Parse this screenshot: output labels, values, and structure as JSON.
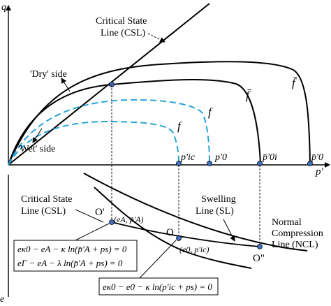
{
  "upper": {
    "q_axis_label": "q",
    "p_axis_label": "p'",
    "csl_label_line1": "Critical State",
    "csl_label_line2": "Line (CSL)",
    "dry_side_label": "'Dry' side",
    "wet_side_label": "'Wet' side",
    "curve_labels": {
      "f_bar_inner": "f̄",
      "f_bar_outer": "f̄",
      "f_upper": "f",
      "f_lower": "f"
    },
    "point_labels": {
      "p_ic": "p'ic",
      "p0": "p'0",
      "p0i_bar": "p̄'0i",
      "p0_bar": "p̄'0"
    }
  },
  "lower": {
    "e_axis_label": "e",
    "csl_label_line1": "Critical State",
    "csl_label_line2": "Line (CSL)",
    "sl_label_line1": "Swelling",
    "sl_label_line2": "Line (SL)",
    "ncl_label_line1": "Normal",
    "ncl_label_line2": "Compression",
    "ncl_label_line3": "Line (NCL)",
    "point_O_prime": "O'",
    "coord_O_prime": "(eA, p̄'A)",
    "point_O": "O",
    "coord_O": "(e0, p'ic)",
    "point_O_double": "O\"",
    "eq_box1_line1": "eκ0 − eA − κ ln(p̄'A + ps) = 0",
    "eq_box1_line2": "eΓ − eA − λ ln(p̄'A + ps) = 0",
    "eq_box2": "eκ0 − e0 − κ ln(p'ic + ps) = 0"
  },
  "colors": {
    "black": "#000000",
    "dashed": "#29a3d9",
    "point_fill": "#3f6fc0"
  }
}
